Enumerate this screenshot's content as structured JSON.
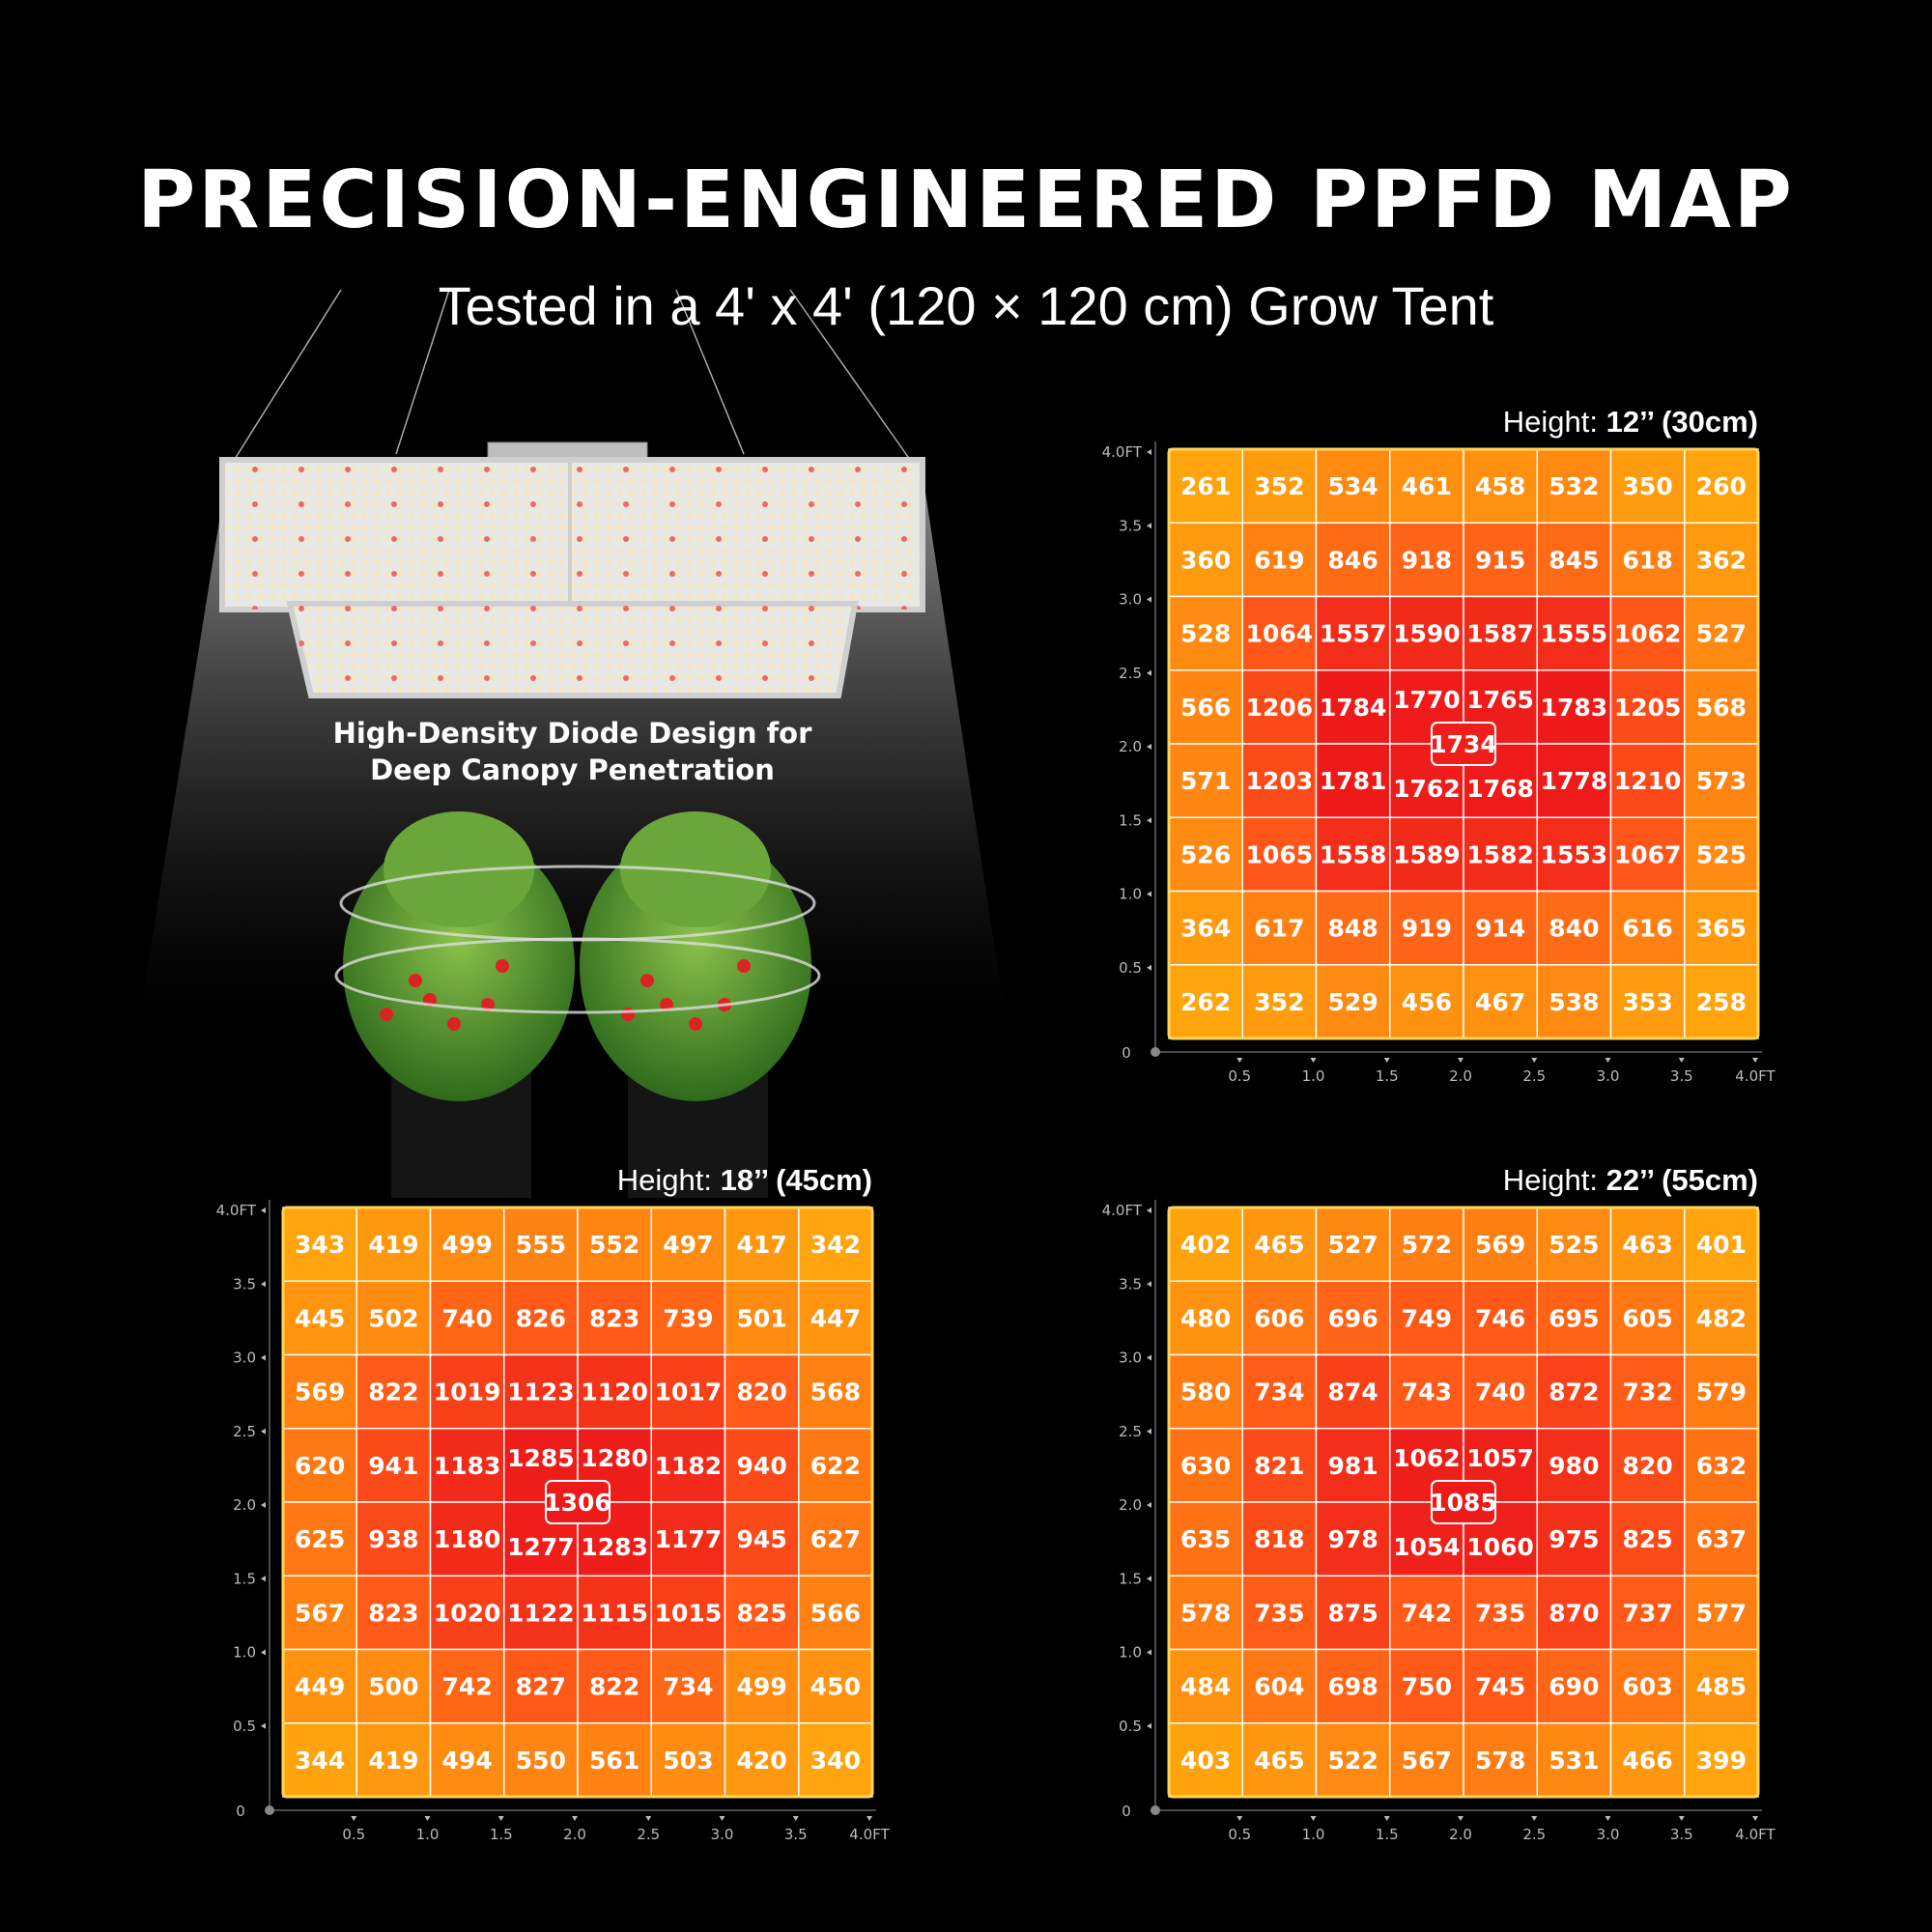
{
  "header": {
    "title": "PRECISION-ENGINEERED PPFD MAP",
    "subtitle": "Tested in a 4' x 4' (120 × 120 cm) Grow Tent"
  },
  "caption": {
    "line1": "High-Density Diode Design for",
    "line2": "Deep Canopy Penetration"
  },
  "colors": {
    "low": "#ffa40d",
    "mid": "#ff5a18",
    "high": "#ee1a1a",
    "grid": "#ffffff",
    "background": "#000000"
  },
  "chart_data": [
    {
      "type": "heatmap",
      "label_prefix": "Height: ",
      "label_value": "12’’",
      "label_metric": "(30cm)",
      "x_ticks": [
        "0.5",
        "1.0",
        "1.5",
        "2.0",
        "2.5",
        "3.0",
        "3.5",
        "4.0FT"
      ],
      "y_ticks": [
        "4.0FT",
        "3.5",
        "3.0",
        "2.5",
        "2.0",
        "1.5",
        "1.0",
        "0.5"
      ],
      "origin": "0",
      "center_value": 1734,
      "rows": [
        [
          261,
          352,
          534,
          461,
          458,
          532,
          350,
          260
        ],
        [
          360,
          619,
          846,
          918,
          915,
          845,
          618,
          362
        ],
        [
          528,
          1064,
          1557,
          1590,
          1587,
          1555,
          1062,
          527
        ],
        [
          566,
          1206,
          1784,
          1770,
          1765,
          1783,
          1205,
          568
        ],
        [
          571,
          1203,
          1781,
          1762,
          1768,
          1778,
          1210,
          573
        ],
        [
          526,
          1065,
          1558,
          1589,
          1582,
          1553,
          1067,
          525
        ],
        [
          364,
          617,
          848,
          919,
          914,
          840,
          616,
          365
        ],
        [
          262,
          352,
          529,
          456,
          467,
          538,
          353,
          258
        ]
      ]
    },
    {
      "type": "heatmap",
      "label_prefix": "Height: ",
      "label_value": "18’’",
      "label_metric": "(45cm)",
      "x_ticks": [
        "0.5",
        "1.0",
        "1.5",
        "2.0",
        "2.5",
        "3.0",
        "3.5",
        "4.0FT"
      ],
      "y_ticks": [
        "4.0FT",
        "3.5",
        "3.0",
        "2.5",
        "2.0",
        "1.5",
        "1.0",
        "0.5"
      ],
      "origin": "0",
      "center_value": 1306,
      "rows": [
        [
          343,
          419,
          499,
          555,
          552,
          497,
          417,
          342
        ],
        [
          445,
          502,
          740,
          826,
          823,
          739,
          501,
          447
        ],
        [
          569,
          822,
          1019,
          1123,
          1120,
          1017,
          820,
          568
        ],
        [
          620,
          941,
          1183,
          1285,
          1280,
          1182,
          940,
          622
        ],
        [
          625,
          938,
          1180,
          1277,
          1283,
          1177,
          945,
          627
        ],
        [
          567,
          823,
          1020,
          1122,
          1115,
          1015,
          825,
          566
        ],
        [
          449,
          500,
          742,
          827,
          822,
          734,
          499,
          450
        ],
        [
          344,
          419,
          494,
          550,
          561,
          503,
          420,
          340
        ]
      ]
    },
    {
      "type": "heatmap",
      "label_prefix": "Height: ",
      "label_value": "22’’",
      "label_metric": "(55cm)",
      "x_ticks": [
        "0.5",
        "1.0",
        "1.5",
        "2.0",
        "2.5",
        "3.0",
        "3.5",
        "4.0FT"
      ],
      "y_ticks": [
        "4.0FT",
        "3.5",
        "3.0",
        "2.5",
        "2.0",
        "1.5",
        "1.0",
        "0.5"
      ],
      "origin": "0",
      "center_value": 1085,
      "rows": [
        [
          402,
          465,
          527,
          572,
          569,
          525,
          463,
          401
        ],
        [
          480,
          606,
          696,
          749,
          746,
          695,
          605,
          482
        ],
        [
          580,
          734,
          874,
          743,
          740,
          872,
          732,
          579
        ],
        [
          630,
          821,
          981,
          1062,
          1057,
          980,
          820,
          632
        ],
        [
          635,
          818,
          978,
          1054,
          1060,
          975,
          825,
          637
        ],
        [
          578,
          735,
          875,
          742,
          735,
          870,
          737,
          577
        ],
        [
          484,
          604,
          698,
          750,
          745,
          690,
          603,
          485
        ],
        [
          403,
          465,
          522,
          567,
          578,
          531,
          466,
          399
        ]
      ]
    }
  ]
}
